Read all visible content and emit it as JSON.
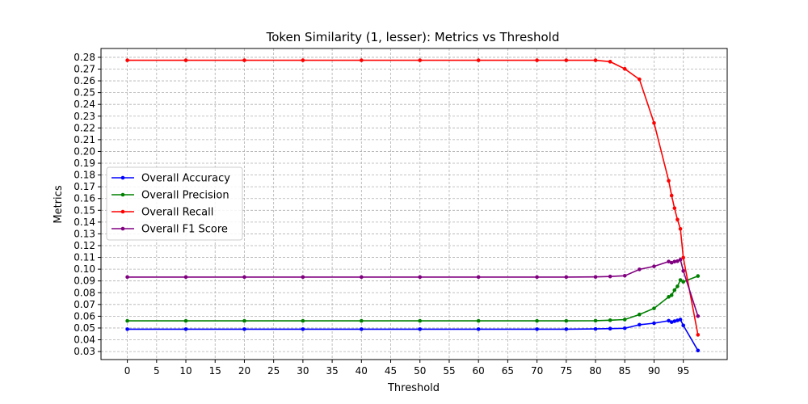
{
  "chart_data": {
    "type": "line",
    "title": "Token Similarity (1, lesser): Metrics vs Threshold",
    "xlabel": "Threshold",
    "ylabel": "Metrics",
    "xlim": [
      -4.5,
      102.5
    ],
    "ylim": [
      0.0232,
      0.2875
    ],
    "xticks": [
      0,
      5,
      10,
      15,
      20,
      25,
      30,
      35,
      40,
      45,
      50,
      55,
      60,
      65,
      70,
      75,
      80,
      85,
      90,
      95
    ],
    "yticks": [
      0.03,
      0.04,
      0.05,
      0.06,
      0.07,
      0.08,
      0.09,
      0.1,
      0.11,
      0.12,
      0.13,
      0.14,
      0.15,
      0.16,
      0.17,
      0.18,
      0.19,
      0.2,
      0.21,
      0.22,
      0.23,
      0.24,
      0.25,
      0.26,
      0.27,
      0.28
    ],
    "grid": true,
    "legend_position": "center-left",
    "series": [
      {
        "name": "Overall Accuracy",
        "color": "#0000ff",
        "x": [
          0,
          10,
          20,
          30,
          40,
          50,
          60,
          70,
          75,
          80,
          82.5,
          85,
          87.5,
          90,
          92.5,
          93,
          93.5,
          94,
          94.5,
          95,
          97.5
        ],
        "y": [
          0.049,
          0.049,
          0.049,
          0.049,
          0.049,
          0.049,
          0.049,
          0.049,
          0.049,
          0.0492,
          0.0495,
          0.0498,
          0.0528,
          0.0541,
          0.0562,
          0.055,
          0.0558,
          0.0565,
          0.0572,
          0.0522,
          0.0309
        ]
      },
      {
        "name": "Overall Precision",
        "color": "#008000",
        "x": [
          0,
          10,
          20,
          30,
          40,
          50,
          60,
          70,
          75,
          80,
          82.5,
          85,
          87.5,
          90,
          92.5,
          93,
          93.5,
          94,
          94.5,
          95,
          97.5
        ],
        "y": [
          0.0561,
          0.0561,
          0.0561,
          0.0561,
          0.0561,
          0.0561,
          0.0561,
          0.0561,
          0.0561,
          0.0562,
          0.0566,
          0.0572,
          0.0615,
          0.0667,
          0.0765,
          0.0779,
          0.0822,
          0.0854,
          0.0908,
          0.0893,
          0.0942
        ]
      },
      {
        "name": "Overall Recall",
        "color": "#ff0000",
        "x": [
          0,
          10,
          20,
          30,
          40,
          50,
          60,
          70,
          75,
          80,
          82.5,
          85,
          87.5,
          90,
          92.5,
          93,
          93.5,
          94,
          94.5,
          95,
          97.5
        ],
        "y": [
          0.2775,
          0.2775,
          0.2775,
          0.2775,
          0.2775,
          0.2775,
          0.2775,
          0.2775,
          0.2775,
          0.2775,
          0.2763,
          0.2702,
          0.2613,
          0.2242,
          0.1751,
          0.1626,
          0.1518,
          0.1421,
          0.1342,
          0.1098,
          0.0442
        ]
      },
      {
        "name": "Overall F1 Score",
        "color": "#800080",
        "x": [
          0,
          10,
          20,
          30,
          40,
          50,
          60,
          70,
          75,
          80,
          82.5,
          85,
          87.5,
          90,
          92.5,
          93,
          93.5,
          94,
          94.5,
          95,
          97.5
        ],
        "y": [
          0.0933,
          0.0933,
          0.0933,
          0.0933,
          0.0933,
          0.0933,
          0.0933,
          0.0933,
          0.0933,
          0.0934,
          0.0938,
          0.0944,
          0.0998,
          0.1024,
          0.1065,
          0.1055,
          0.1064,
          0.1068,
          0.1081,
          0.0985,
          0.0601
        ]
      }
    ]
  }
}
